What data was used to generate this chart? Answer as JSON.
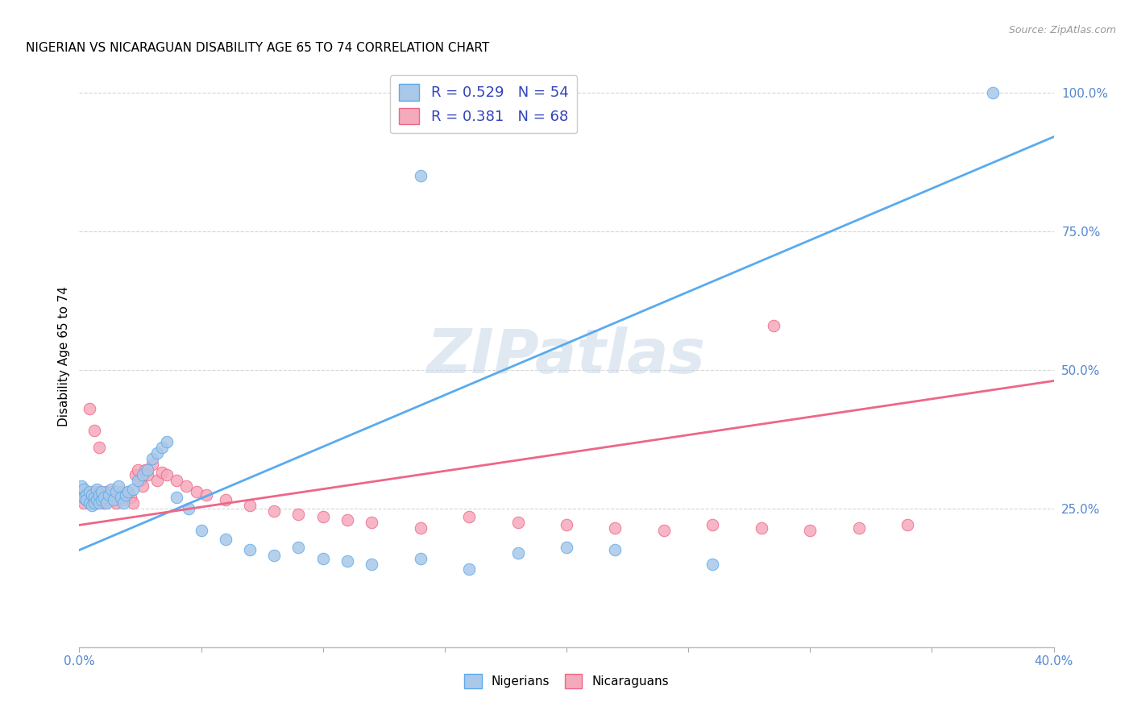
{
  "title": "NIGERIAN VS NICARAGUAN DISABILITY AGE 65 TO 74 CORRELATION CHART",
  "source": "Source: ZipAtlas.com",
  "ylabel": "Disability Age 65 to 74",
  "xlim": [
    0.0,
    0.4
  ],
  "ylim": [
    0.0,
    1.05
  ],
  "nigerian_color": "#aac8e8",
  "nicaraguan_color": "#f5aabb",
  "nigerian_line_color": "#5aaaee",
  "nicaraguan_line_color": "#ee6688",
  "background_color": "#ffffff",
  "grid_color": "#cccccc",
  "tick_color": "#5588cc",
  "legend_text_color": "#3344bb",
  "watermark": "ZIPatlas",
  "R_nigerian": 0.529,
  "N_nigerian": 54,
  "R_nicaraguan": 0.381,
  "N_nicaraguan": 68,
  "nig_line_x0": 0.0,
  "nig_line_y0": 0.175,
  "nig_line_x1": 0.4,
  "nig_line_y1": 0.92,
  "nic_line_x0": 0.0,
  "nic_line_y0": 0.22,
  "nic_line_x1": 0.4,
  "nic_line_y1": 0.48,
  "nigerian_x": [
    0.001,
    0.002,
    0.002,
    0.003,
    0.003,
    0.004,
    0.004,
    0.005,
    0.005,
    0.006,
    0.006,
    0.007,
    0.007,
    0.008,
    0.008,
    0.009,
    0.009,
    0.01,
    0.011,
    0.012,
    0.013,
    0.014,
    0.015,
    0.016,
    0.017,
    0.018,
    0.019,
    0.02,
    0.022,
    0.024,
    0.026,
    0.028,
    0.03,
    0.032,
    0.034,
    0.036,
    0.04,
    0.045,
    0.05,
    0.06,
    0.07,
    0.08,
    0.09,
    0.1,
    0.11,
    0.12,
    0.14,
    0.16,
    0.18,
    0.2,
    0.22,
    0.26,
    0.375,
    0.14
  ],
  "nigerian_y": [
    0.29,
    0.285,
    0.27,
    0.275,
    0.265,
    0.28,
    0.26,
    0.275,
    0.255,
    0.27,
    0.26,
    0.265,
    0.285,
    0.275,
    0.26,
    0.265,
    0.28,
    0.27,
    0.26,
    0.275,
    0.285,
    0.265,
    0.28,
    0.29,
    0.27,
    0.26,
    0.275,
    0.28,
    0.285,
    0.3,
    0.31,
    0.32,
    0.34,
    0.35,
    0.36,
    0.37,
    0.27,
    0.25,
    0.21,
    0.195,
    0.175,
    0.165,
    0.18,
    0.16,
    0.155,
    0.15,
    0.16,
    0.14,
    0.17,
    0.18,
    0.175,
    0.15,
    1.0,
    0.85
  ],
  "nicaraguan_x": [
    0.001,
    0.002,
    0.002,
    0.003,
    0.003,
    0.004,
    0.005,
    0.005,
    0.006,
    0.006,
    0.007,
    0.007,
    0.008,
    0.008,
    0.009,
    0.009,
    0.01,
    0.01,
    0.011,
    0.012,
    0.012,
    0.013,
    0.014,
    0.015,
    0.015,
    0.016,
    0.017,
    0.018,
    0.019,
    0.02,
    0.021,
    0.022,
    0.023,
    0.024,
    0.025,
    0.026,
    0.027,
    0.028,
    0.03,
    0.032,
    0.034,
    0.036,
    0.04,
    0.044,
    0.048,
    0.052,
    0.06,
    0.07,
    0.08,
    0.09,
    0.1,
    0.11,
    0.12,
    0.14,
    0.16,
    0.18,
    0.2,
    0.22,
    0.24,
    0.26,
    0.28,
    0.3,
    0.32,
    0.34,
    0.004,
    0.006,
    0.008,
    0.285
  ],
  "nicaraguan_y": [
    0.27,
    0.275,
    0.26,
    0.28,
    0.265,
    0.27,
    0.275,
    0.26,
    0.28,
    0.265,
    0.275,
    0.26,
    0.27,
    0.28,
    0.265,
    0.27,
    0.26,
    0.275,
    0.28,
    0.265,
    0.27,
    0.28,
    0.265,
    0.275,
    0.26,
    0.27,
    0.28,
    0.265,
    0.275,
    0.28,
    0.27,
    0.26,
    0.31,
    0.32,
    0.3,
    0.29,
    0.32,
    0.31,
    0.33,
    0.3,
    0.315,
    0.31,
    0.3,
    0.29,
    0.28,
    0.275,
    0.265,
    0.255,
    0.245,
    0.24,
    0.235,
    0.23,
    0.225,
    0.215,
    0.235,
    0.225,
    0.22,
    0.215,
    0.21,
    0.22,
    0.215,
    0.21,
    0.215,
    0.22,
    0.43,
    0.39,
    0.36,
    0.58
  ]
}
